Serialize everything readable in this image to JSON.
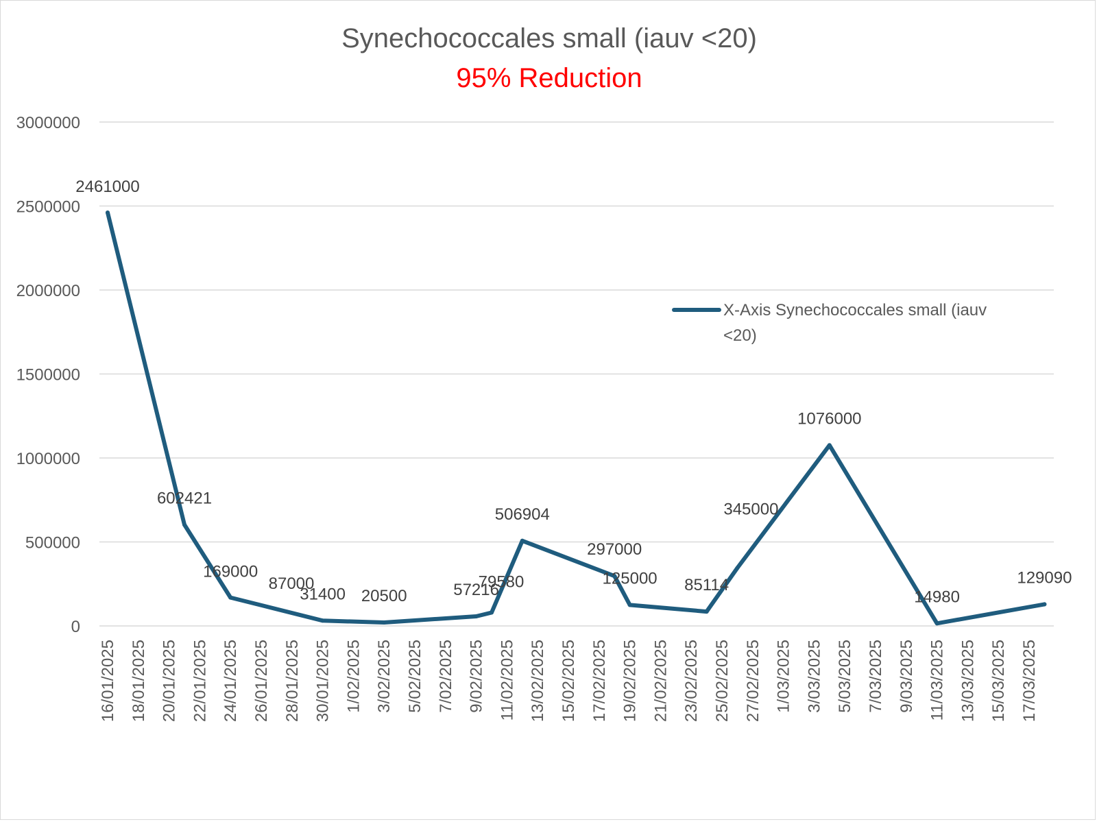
{
  "chart_data": {
    "type": "line",
    "title": "Synechococcales small (iauv <20)",
    "subtitle": "95% Reduction",
    "xlabel": "",
    "ylabel": "",
    "ylim": [
      0,
      3000000
    ],
    "yticks": [
      0,
      500000,
      1000000,
      1500000,
      2000000,
      2500000,
      3000000
    ],
    "ytick_labels": [
      "0",
      "500000",
      "1000000",
      "1500000",
      "2000000",
      "2500000",
      "3000000"
    ],
    "xlim": [
      "16/01/2025",
      "18/03/2025"
    ],
    "xtick_labels": [
      "16/01/2025",
      "18/01/2025",
      "20/01/2025",
      "22/01/2025",
      "24/01/2025",
      "26/01/2025",
      "28/01/2025",
      "30/01/2025",
      "1/02/2025",
      "3/02/2025",
      "5/02/2025",
      "7/02/2025",
      "9/02/2025",
      "11/02/2025",
      "13/02/2025",
      "15/02/2025",
      "17/02/2025",
      "19/02/2025",
      "21/02/2025",
      "23/02/2025",
      "25/02/2025",
      "27/02/2025",
      "1/03/2025",
      "3/03/2025",
      "5/03/2025",
      "7/03/2025",
      "9/03/2025",
      "11/03/2025",
      "13/03/2025",
      "15/03/2025",
      "17/03/2025"
    ],
    "grid": true,
    "legend_position": "right",
    "series": [
      {
        "name": "X-Axis Synechococcales small (iauv <20)",
        "color": "#1f5c7e",
        "points": [
          {
            "x": "16/01/2025",
            "y": 2461000,
            "label": "2461000"
          },
          {
            "x": "21/01/2025",
            "y": 602421,
            "label": "602421"
          },
          {
            "x": "24/01/2025",
            "y": 169000,
            "label": "169000"
          },
          {
            "x": "30/01/2025",
            "y": 31400,
            "label": "31400"
          },
          {
            "x": "3/02/2025",
            "y": 20500,
            "label": "20500"
          },
          {
            "x": "9/02/2025",
            "y": 57216,
            "label": "57216"
          },
          {
            "x": "10/02/2025",
            "y": 79580,
            "label": "79580"
          },
          {
            "x": "12/02/2025",
            "y": 506904,
            "label": "506904"
          },
          {
            "x": "18/02/2025",
            "y": 297000,
            "label": "297000"
          },
          {
            "x": "19/02/2025",
            "y": 125000,
            "label": "125000"
          },
          {
            "x": "24/02/2025",
            "y": 85114,
            "label": "85114"
          },
          {
            "x": "26/02/2025",
            "y": 345000,
            "label": "345000"
          },
          {
            "x": "4/03/2025",
            "y": 1076000,
            "label": "1076000"
          },
          {
            "x": "11/03/2025",
            "y": 14980,
            "label": "14980"
          },
          {
            "x": "18/03/2025",
            "y": 129090,
            "label": "129090"
          }
        ],
        "extra_labels": [
          "87000"
        ]
      }
    ]
  }
}
